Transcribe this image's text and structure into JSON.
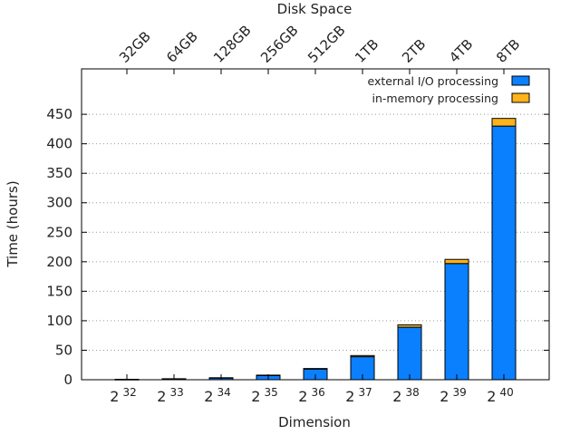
{
  "chart_data": {
    "type": "bar",
    "stacked": true,
    "title": "",
    "xlabel": "Dimension",
    "ylabel": "Time (hours)",
    "x2label": "Disk Space",
    "categories": [
      {
        "base": "2",
        "exp": "32"
      },
      {
        "base": "2",
        "exp": "33"
      },
      {
        "base": "2",
        "exp": "34"
      },
      {
        "base": "2",
        "exp": "35"
      },
      {
        "base": "2",
        "exp": "36"
      },
      {
        "base": "2",
        "exp": "37"
      },
      {
        "base": "2",
        "exp": "38"
      },
      {
        "base": "2",
        "exp": "39"
      },
      {
        "base": "2",
        "exp": "40"
      }
    ],
    "top_categories": [
      "32GB",
      "64GB",
      "128GB",
      "256GB",
      "512GB",
      "1TB",
      "2TB",
      "4TB",
      "8TB"
    ],
    "series": [
      {
        "name": "external I/O processing",
        "color": "#0a80ff",
        "values": [
          0.5,
          1.5,
          3,
          7,
          18,
          39,
          89,
          197,
          430
        ]
      },
      {
        "name": "in-memory processing",
        "color": "#ffb31a",
        "values": [
          0.1,
          0.2,
          0.4,
          0.8,
          1,
          2,
          4,
          7,
          13
        ]
      }
    ],
    "ylim": [
      0,
      450
    ],
    "yticks": [
      0,
      50,
      100,
      150,
      200,
      250,
      300,
      350,
      400,
      450
    ],
    "grid": true,
    "legend_position": "top-right"
  }
}
